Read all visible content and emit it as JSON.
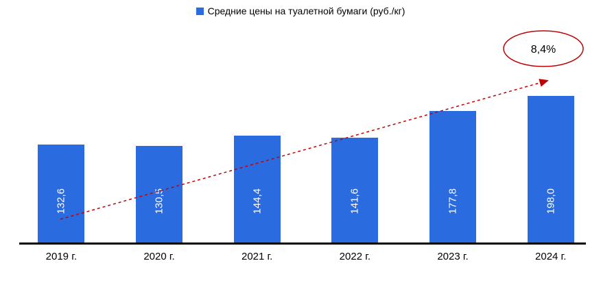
{
  "legend": {
    "label": "Средние цены на туалетной бумаги (руб./кг)"
  },
  "chart_data": {
    "type": "bar",
    "title": "Средние цены на туалетной бумаги (руб./кг)",
    "categories": [
      "2019 г.",
      "2020 г.",
      "2021 г.",
      "2022 г.",
      "2023 г.",
      "2024 г."
    ],
    "values": [
      132.6,
      130.5,
      144.4,
      141.6,
      177.8,
      198.0
    ],
    "value_labels": [
      "132,6",
      "130,5",
      "144,4",
      "141,6",
      "177,8",
      "198,0"
    ],
    "xlabel": "",
    "ylabel": "",
    "ylim": [
      0,
      210
    ],
    "grid": false,
    "legend_position": "top",
    "bar_color": "#2B6BE0",
    "trend_color": "#C00000",
    "annotation": "8,4%"
  }
}
